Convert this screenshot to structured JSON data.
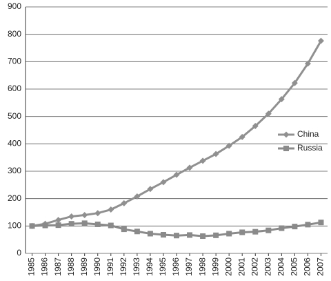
{
  "chart_data": {
    "type": "line",
    "categories": [
      "1985",
      "1986",
      "1987",
      "1988",
      "1989",
      "1990",
      "1991",
      "1992",
      "1993",
      "1994",
      "1995",
      "1996",
      "1997",
      "1998",
      "1999",
      "2000",
      "2001",
      "2002",
      "2003",
      "2004",
      "2005",
      "2006",
      "2007"
    ],
    "series": [
      {
        "name": "China",
        "color": "#909090",
        "marker": "diamond",
        "values": [
          100,
          108,
          122,
          135,
          140,
          147,
          160,
          183,
          208,
          235,
          260,
          287,
          313,
          338,
          363,
          393,
          425,
          465,
          510,
          563,
          622,
          693,
          776
        ]
      },
      {
        "name": "Russia",
        "color": "#8a8a8a",
        "marker": "square",
        "values": [
          100,
          102,
          103,
          108,
          110,
          106,
          102,
          88,
          80,
          72,
          68,
          65,
          67,
          63,
          66,
          72,
          77,
          79,
          84,
          92,
          98,
          105,
          113
        ]
      }
    ],
    "ylim": [
      0,
      900
    ],
    "yticks": [
      0,
      100,
      200,
      300,
      400,
      500,
      600,
      700,
      800,
      900
    ],
    "grid": true,
    "legend": "right"
  }
}
